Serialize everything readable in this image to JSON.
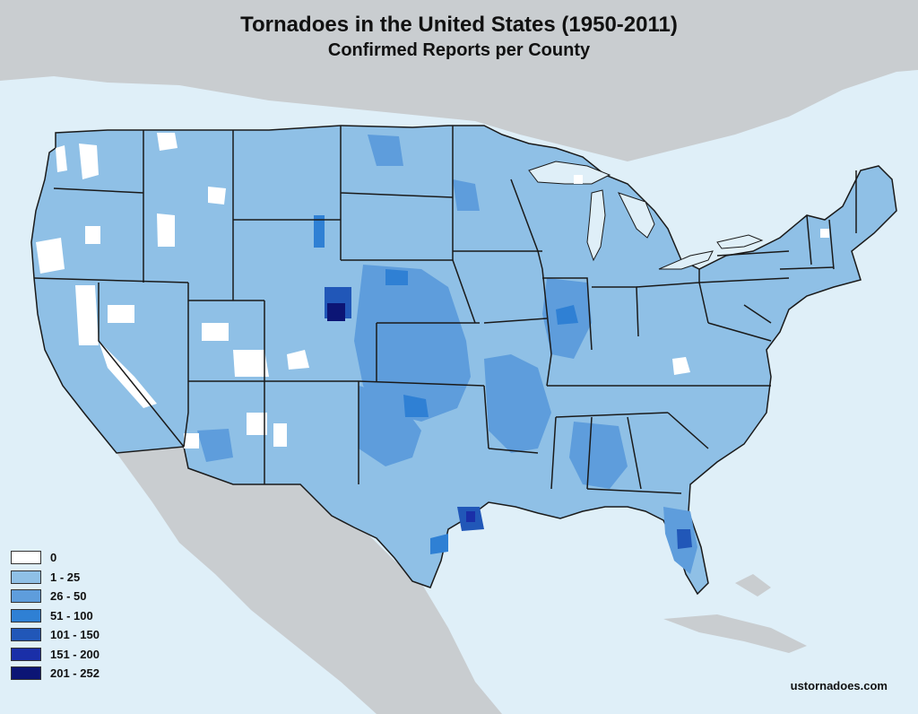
{
  "title": "Tornadoes in the United States (1950-2011)",
  "subtitle": "Confirmed Reports per County",
  "credit": "ustornadoes.com",
  "colors": {
    "ocean": "#dfeff8",
    "land_other": "#c9cdd0",
    "border": "#1a1a1a"
  },
  "legend": [
    {
      "label": "0",
      "color": "#ffffff"
    },
    {
      "label": "1 - 25",
      "color": "#8fc0e6"
    },
    {
      "label": "26 - 50",
      "color": "#5e9ddc"
    },
    {
      "label": "51 - 100",
      "color": "#2f80d4"
    },
    {
      "label": "101 - 150",
      "color": "#2157b8"
    },
    {
      "label": "151 - 200",
      "color": "#1a2fa8"
    },
    {
      "label": "201 - 252",
      "color": "#0c1575"
    }
  ]
}
